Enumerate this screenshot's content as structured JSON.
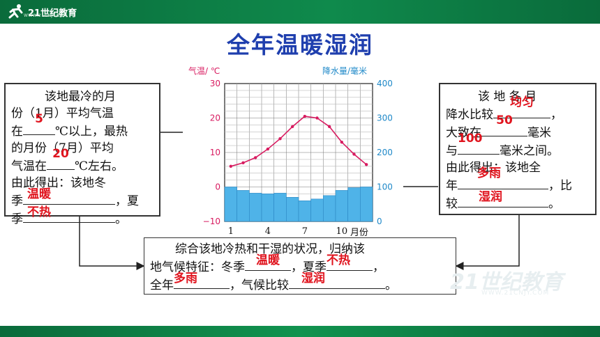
{
  "header": {
    "logo_text": "21世纪教育",
    "logo_sub": "WWW.21CNJY.COM"
  },
  "title": "全年温暖湿润",
  "left_box": {
    "l1": "该地最冷的月",
    "l2": "份（1月）平均气温",
    "l3a": "在",
    "a1": "5",
    "l3b": "℃以上，最热",
    "l4": "的月份（7月）平均",
    "l5a": "气温在",
    "a2": "20",
    "l5b": "℃左右。",
    "l6": "由此得出：该地冬",
    "l7a": "季",
    "a3": "温暖",
    "l7b": "，夏",
    "l8a": "季",
    "a4": "不热",
    "l8b": "。"
  },
  "right_box": {
    "l1": "该 地 各 月",
    "l2a": "降水比较",
    "a1": "均匀",
    "l2b": "，",
    "l3a": "大致在",
    "a2": "50",
    "l3b": "毫米",
    "l4a": "与",
    "a3": "100",
    "l4b": "毫米之间。",
    "l5": "由此得出：该地全",
    "l6a": "年",
    "a4": "多雨",
    "l6b": "，比",
    "l7a": "较",
    "a5": "湿润",
    "l7b": "。"
  },
  "bottom_box": {
    "l1": "综合该地冷热和干湿的状况，归纳该",
    "l2a": "地气候特征：冬季",
    "a1": "温暖",
    "l2b": "，夏季",
    "a2": "不热",
    "l2c": "，",
    "l3a": "全年",
    "a3": "多雨",
    "l3b": "，气候比较",
    "a4": "湿润",
    "l3c": "。"
  },
  "watermark": {
    "text": "21世纪教育",
    "sub": "WWW.21CNJY.COM"
  },
  "colors": {
    "green_bar": "#0f8a4c",
    "title_blue": "#1f3fae",
    "answer_red": "#e0141e",
    "temp_line": "#d81b60",
    "precip_bar": "#4fb3e8",
    "axis_temp": "#d81b60",
    "axis_precip": "#1e88c8"
  },
  "chart_data": {
    "type": "bar+line",
    "left_axis_label": "气温/ ℃",
    "right_axis_label": "降水量/毫米",
    "x_axis_label": "月份",
    "x_ticks": [
      "1",
      "4",
      "7",
      "10"
    ],
    "left_ticks": [
      "30",
      "20",
      "10",
      "0",
      "−10"
    ],
    "right_ticks": [
      "400",
      "300",
      "200",
      "100",
      "0"
    ],
    "left_range": [
      -10,
      30
    ],
    "right_range": [
      0,
      400
    ],
    "months": [
      1,
      2,
      3,
      4,
      5,
      6,
      7,
      8,
      9,
      10,
      11,
      12
    ],
    "temperature": [
      6,
      7,
      8.5,
      11,
      14,
      17.5,
      20.5,
      20,
      17.5,
      13,
      9.5,
      6.5
    ],
    "precipitation": [
      100,
      90,
      82,
      80,
      82,
      70,
      60,
      65,
      75,
      90,
      98,
      100
    ],
    "grid": true
  }
}
